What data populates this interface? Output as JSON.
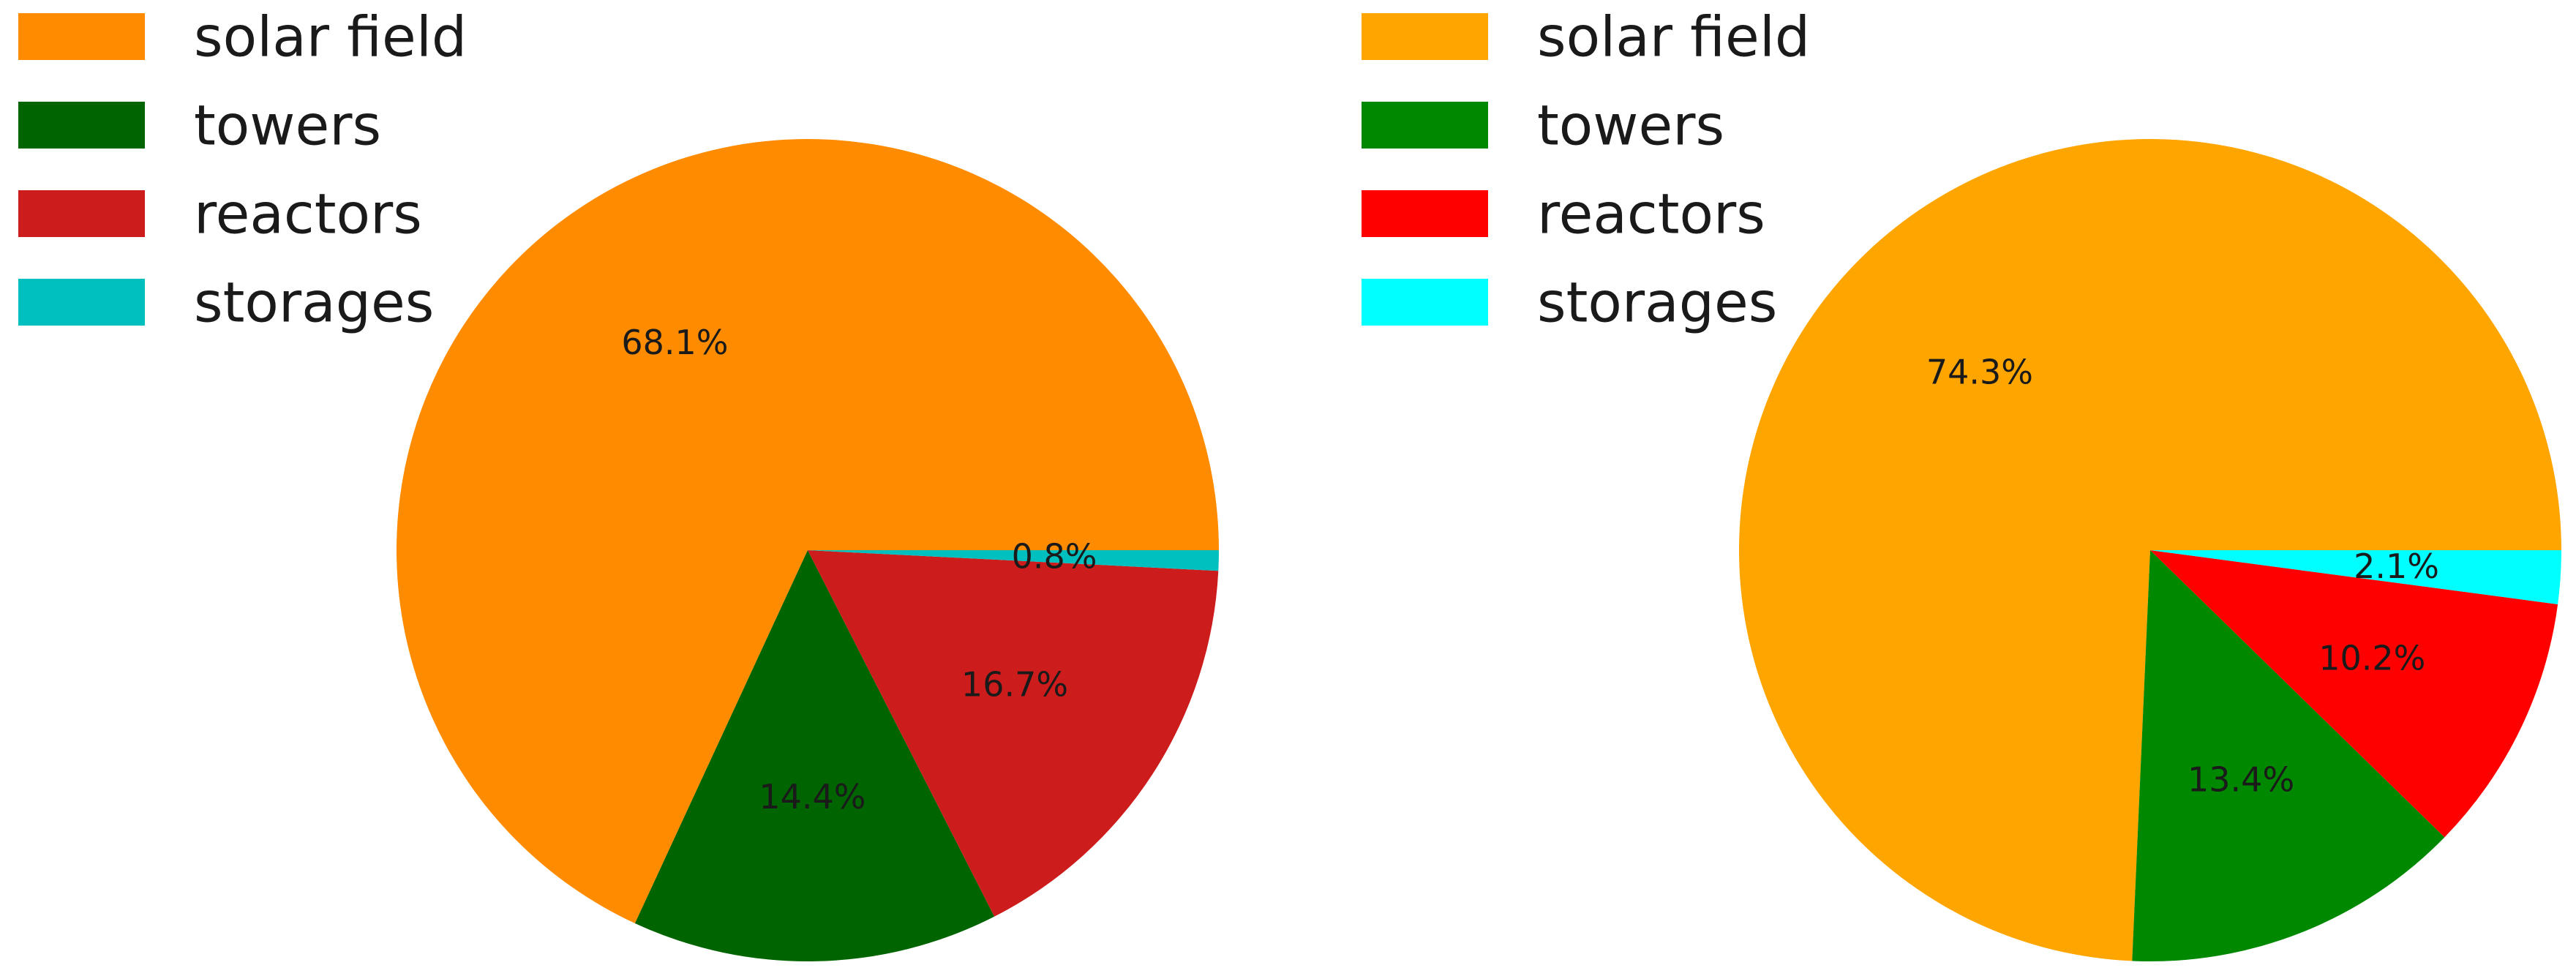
{
  "chart_data": [
    {
      "type": "pie",
      "title": "",
      "categories": [
        "solar field",
        "towers",
        "reactors",
        "storages"
      ],
      "values": [
        68.1,
        14.4,
        16.7,
        0.8
      ],
      "labels": [
        "68.1%",
        "14.4%",
        "16.7%",
        "0.8%"
      ],
      "colors": [
        "#ff8c00",
        "#006400",
        "#cd1c1c",
        "#00bfbf"
      ],
      "legend_position": "top-left",
      "start_angle_deg": 0,
      "direction": "counterclockwise"
    },
    {
      "type": "pie",
      "title": "",
      "categories": [
        "solar field",
        "towers",
        "reactors",
        "storages"
      ],
      "values": [
        74.3,
        13.4,
        10.2,
        2.1
      ],
      "labels": [
        "74.3%",
        "13.4%",
        "10.2%",
        "2.1%"
      ],
      "colors": [
        "#ffa500",
        "#008800",
        "#ff0000",
        "#00ffff"
      ],
      "legend_position": "top-left",
      "start_angle_deg": 0,
      "direction": "counterclockwise"
    }
  ]
}
